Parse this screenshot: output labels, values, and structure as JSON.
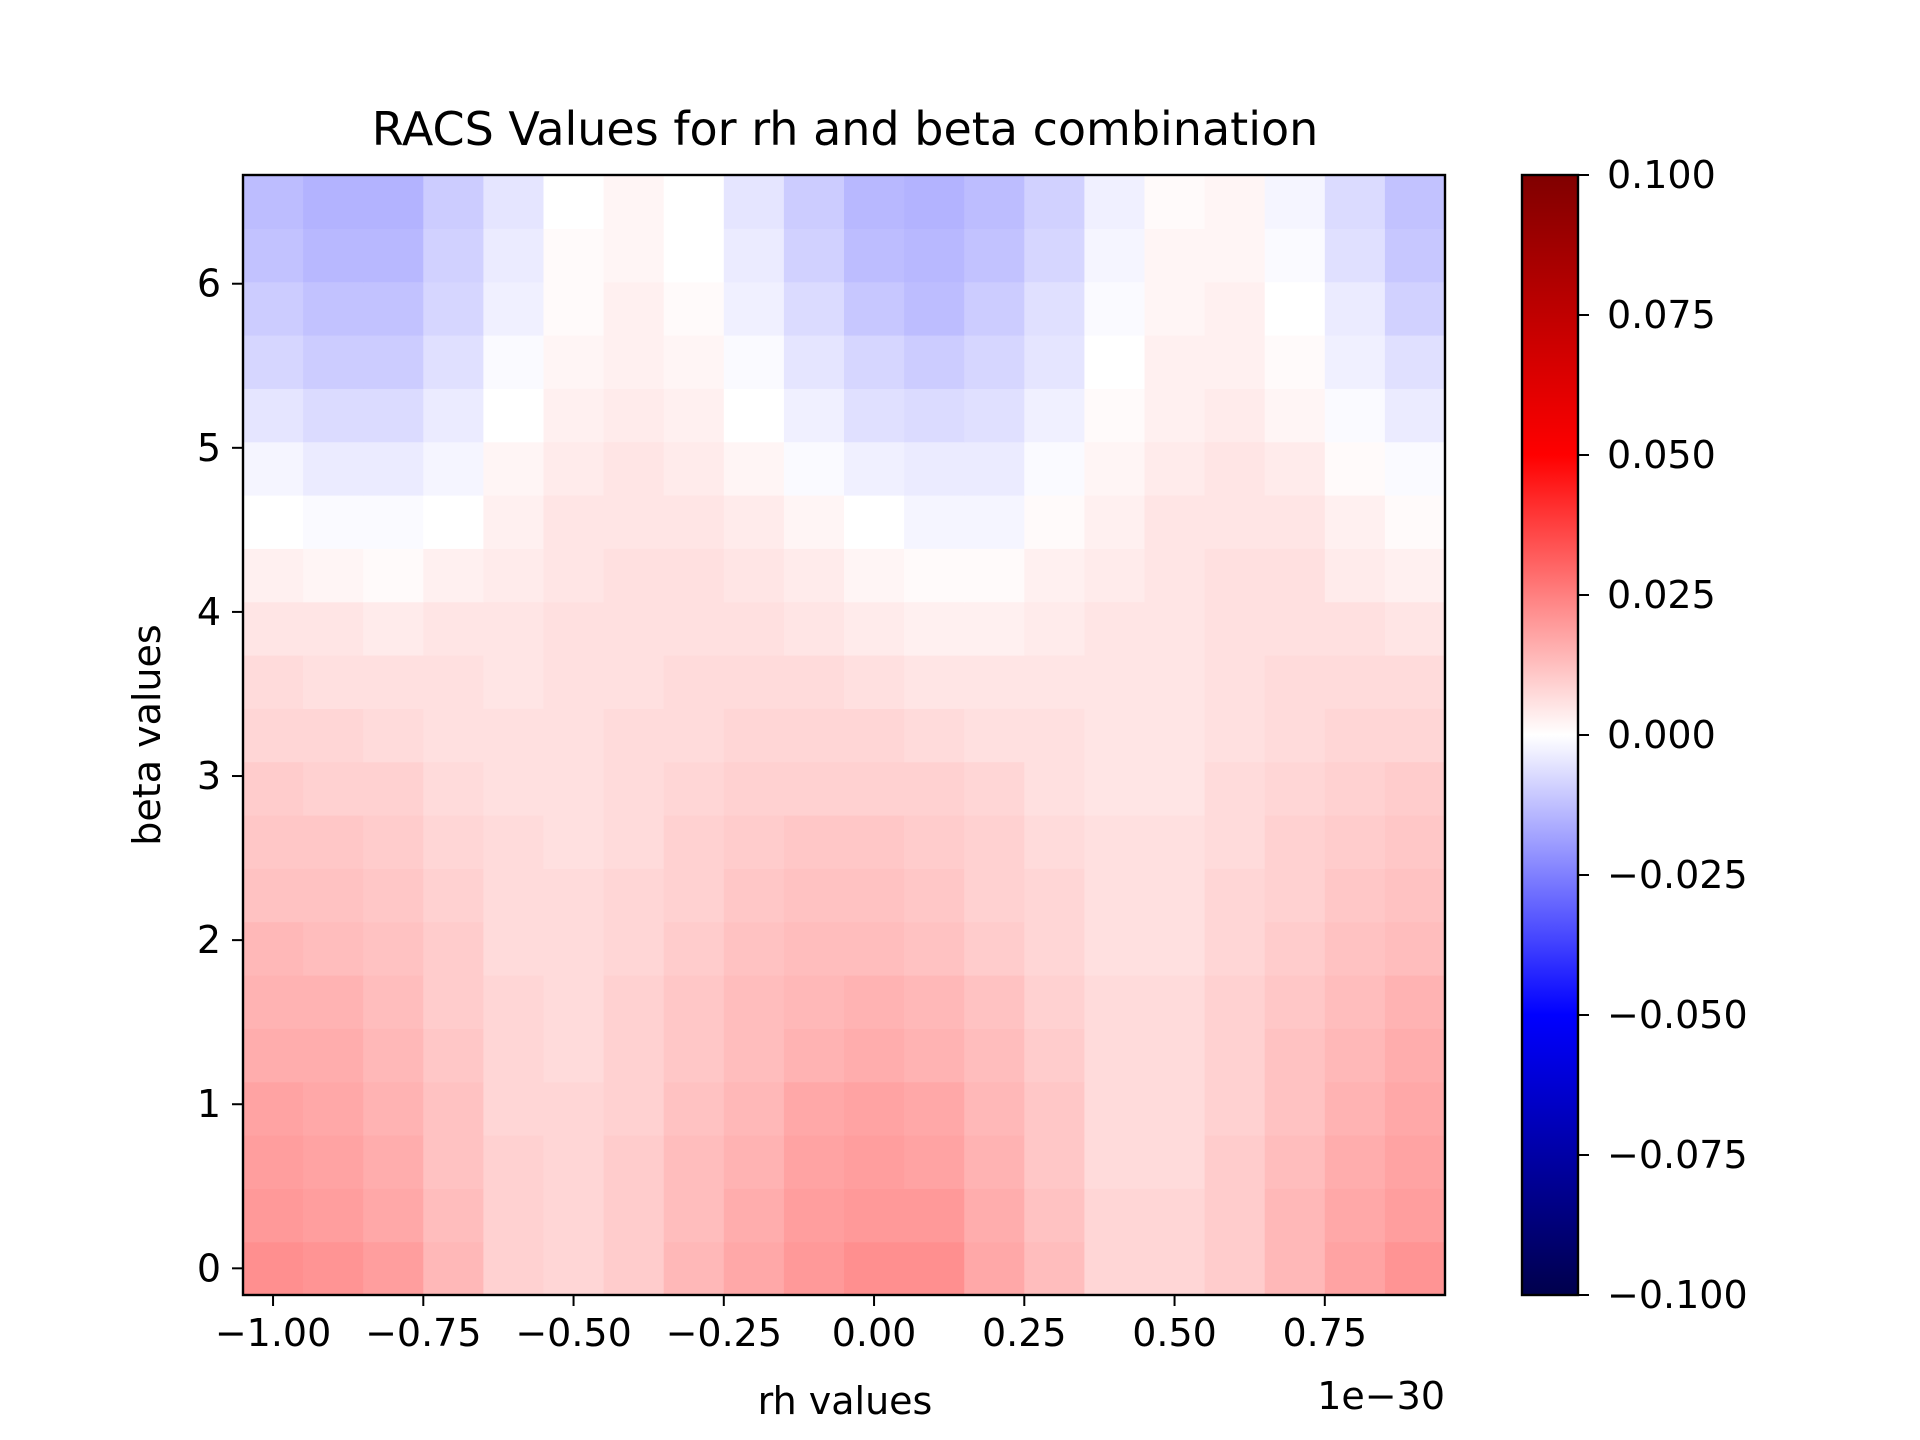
{
  "chart_data": {
    "type": "heatmap",
    "title": "RACS Values for rh and beta combination",
    "xlabel": "rh values",
    "ylabel": "beta values",
    "x_offset_label": "1e−30",
    "x_scale_factor": "1e-30",
    "x_tick_values": [
      -1.0,
      -0.75,
      -0.5,
      -0.25,
      0.0,
      0.25,
      0.5,
      0.75
    ],
    "x_tick_labels": [
      "−1.00",
      "−0.75",
      "−0.50",
      "−0.25",
      "0.00",
      "0.25",
      "0.50",
      "0.75"
    ],
    "y_tick_values": [
      0,
      1,
      2,
      3,
      4,
      5,
      6
    ],
    "y_tick_labels": [
      "0",
      "1",
      "2",
      "3",
      "4",
      "5",
      "6"
    ],
    "x_centers": [
      -1.0,
      -0.9,
      -0.8,
      -0.7,
      -0.6,
      -0.5,
      -0.4,
      -0.3,
      -0.2,
      -0.1,
      0.0,
      0.1,
      0.2,
      0.3,
      0.4,
      0.5,
      0.6,
      0.7,
      0.8,
      0.9
    ],
    "y_centers": [
      0.0,
      0.325,
      0.65,
      0.975,
      1.3,
      1.625,
      1.95,
      2.275,
      2.6,
      2.925,
      3.25,
      3.575,
      3.9,
      4.225,
      4.55,
      4.875,
      5.2,
      5.525,
      5.85,
      6.175,
      6.5
    ],
    "xlim": [
      -1.05,
      0.95
    ],
    "ylim": [
      -0.1625,
      6.6625
    ],
    "colorbar": {
      "colormap": "seismic",
      "vmin": -0.1,
      "vmax": 0.1,
      "tick_values": [
        -0.1,
        -0.075,
        -0.05,
        -0.025,
        0.0,
        0.025,
        0.05,
        0.075,
        0.1
      ],
      "tick_labels": [
        "−0.100",
        "−0.075",
        "−0.050",
        "−0.025",
        "0.000",
        "0.025",
        "0.050",
        "0.075",
        "0.100"
      ]
    },
    "grid": false,
    "values": [
      [
        0.022,
        0.021,
        0.019,
        0.014,
        0.009,
        0.008,
        0.01,
        0.014,
        0.017,
        0.02,
        0.022,
        0.022,
        0.017,
        0.013,
        0.008,
        0.008,
        0.01,
        0.014,
        0.018,
        0.021
      ],
      [
        0.02,
        0.019,
        0.017,
        0.013,
        0.009,
        0.008,
        0.01,
        0.013,
        0.016,
        0.019,
        0.02,
        0.02,
        0.016,
        0.012,
        0.008,
        0.008,
        0.01,
        0.014,
        0.017,
        0.019
      ],
      [
        0.019,
        0.018,
        0.016,
        0.012,
        0.009,
        0.008,
        0.01,
        0.013,
        0.015,
        0.018,
        0.019,
        0.018,
        0.015,
        0.011,
        0.007,
        0.007,
        0.01,
        0.013,
        0.016,
        0.018
      ],
      [
        0.018,
        0.017,
        0.015,
        0.012,
        0.008,
        0.008,
        0.009,
        0.012,
        0.014,
        0.017,
        0.018,
        0.017,
        0.014,
        0.011,
        0.007,
        0.007,
        0.009,
        0.012,
        0.015,
        0.017
      ],
      [
        0.016,
        0.016,
        0.014,
        0.011,
        0.008,
        0.007,
        0.009,
        0.011,
        0.013,
        0.015,
        0.016,
        0.015,
        0.013,
        0.01,
        0.007,
        0.007,
        0.009,
        0.012,
        0.014,
        0.016
      ],
      [
        0.015,
        0.015,
        0.013,
        0.01,
        0.008,
        0.007,
        0.009,
        0.011,
        0.013,
        0.014,
        0.015,
        0.014,
        0.012,
        0.009,
        0.007,
        0.007,
        0.009,
        0.011,
        0.013,
        0.015
      ],
      [
        0.014,
        0.013,
        0.012,
        0.01,
        0.007,
        0.007,
        0.008,
        0.01,
        0.012,
        0.013,
        0.013,
        0.012,
        0.01,
        0.008,
        0.006,
        0.006,
        0.008,
        0.01,
        0.012,
        0.013
      ],
      [
        0.012,
        0.012,
        0.011,
        0.009,
        0.007,
        0.007,
        0.008,
        0.009,
        0.011,
        0.012,
        0.012,
        0.011,
        0.009,
        0.008,
        0.006,
        0.006,
        0.008,
        0.009,
        0.011,
        0.012
      ],
      [
        0.011,
        0.011,
        0.01,
        0.008,
        0.007,
        0.006,
        0.007,
        0.009,
        0.01,
        0.011,
        0.011,
        0.01,
        0.009,
        0.007,
        0.006,
        0.006,
        0.007,
        0.009,
        0.01,
        0.011
      ],
      [
        0.01,
        0.009,
        0.009,
        0.007,
        0.006,
        0.006,
        0.007,
        0.008,
        0.009,
        0.009,
        0.009,
        0.009,
        0.008,
        0.006,
        0.005,
        0.005,
        0.007,
        0.008,
        0.009,
        0.01
      ],
      [
        0.008,
        0.008,
        0.007,
        0.006,
        0.006,
        0.006,
        0.007,
        0.007,
        0.008,
        0.008,
        0.008,
        0.007,
        0.006,
        0.006,
        0.005,
        0.005,
        0.006,
        0.007,
        0.008,
        0.008
      ],
      [
        0.007,
        0.006,
        0.006,
        0.006,
        0.005,
        0.006,
        0.006,
        0.007,
        0.007,
        0.007,
        0.006,
        0.005,
        0.005,
        0.005,
        0.005,
        0.005,
        0.006,
        0.007,
        0.007,
        0.007
      ],
      [
        0.005,
        0.005,
        0.004,
        0.005,
        0.005,
        0.006,
        0.006,
        0.006,
        0.006,
        0.005,
        0.004,
        0.003,
        0.003,
        0.004,
        0.005,
        0.005,
        0.006,
        0.006,
        0.006,
        0.005
      ],
      [
        0.003,
        0.002,
        0.001,
        0.003,
        0.004,
        0.005,
        0.006,
        0.006,
        0.005,
        0.004,
        0.002,
        0.001,
        0.001,
        0.003,
        0.004,
        0.005,
        0.006,
        0.006,
        0.004,
        0.003
      ],
      [
        0.0,
        -0.001,
        -0.001,
        0.0,
        0.003,
        0.005,
        0.005,
        0.005,
        0.004,
        0.002,
        0.0,
        -0.002,
        -0.002,
        0.001,
        0.003,
        0.005,
        0.005,
        0.005,
        0.003,
        0.001
      ],
      [
        -0.002,
        -0.004,
        -0.004,
        -0.002,
        0.002,
        0.004,
        0.005,
        0.004,
        0.002,
        -0.001,
        -0.003,
        -0.004,
        -0.004,
        -0.001,
        0.002,
        0.004,
        0.005,
        0.004,
        0.001,
        -0.001
      ],
      [
        -0.005,
        -0.007,
        -0.007,
        -0.004,
        0.0,
        0.003,
        0.004,
        0.003,
        0.0,
        -0.003,
        -0.006,
        -0.007,
        -0.006,
        -0.003,
        0.001,
        0.003,
        0.004,
        0.002,
        -0.001,
        -0.004
      ],
      [
        -0.008,
        -0.01,
        -0.01,
        -0.006,
        -0.001,
        0.002,
        0.003,
        0.002,
        -0.001,
        -0.005,
        -0.008,
        -0.01,
        -0.008,
        -0.005,
        0.0,
        0.003,
        0.003,
        0.001,
        -0.003,
        -0.006
      ],
      [
        -0.01,
        -0.012,
        -0.012,
        -0.008,
        -0.003,
        0.001,
        0.003,
        0.001,
        -0.003,
        -0.007,
        -0.011,
        -0.013,
        -0.01,
        -0.006,
        -0.001,
        0.002,
        0.003,
        0.0,
        -0.004,
        -0.009
      ],
      [
        -0.012,
        -0.014,
        -0.014,
        -0.009,
        -0.004,
        0.001,
        0.002,
        0.0,
        -0.004,
        -0.009,
        -0.013,
        -0.014,
        -0.012,
        -0.008,
        -0.002,
        0.002,
        0.002,
        -0.001,
        -0.006,
        -0.011
      ],
      [
        -0.013,
        -0.015,
        -0.015,
        -0.01,
        -0.005,
        0.0,
        0.002,
        0.0,
        -0.005,
        -0.01,
        -0.014,
        -0.015,
        -0.013,
        -0.009,
        -0.003,
        0.001,
        0.002,
        -0.002,
        -0.007,
        -0.012
      ]
    ]
  }
}
